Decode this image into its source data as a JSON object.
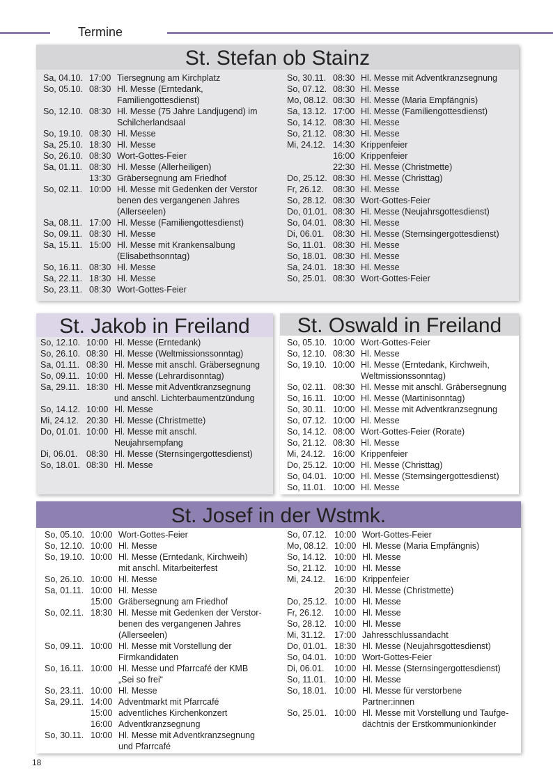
{
  "header": {
    "title": "Termine"
  },
  "page_number": "18",
  "sections": [
    {
      "title": "St. Stefan ob Stainz",
      "columns": [
        [
          {
            "d": "Sa, 04.10.",
            "t": "17:00",
            "e": "Tiersegnung am Kirchplatz"
          },
          {
            "d": "So, 05.10.",
            "t": "08:30",
            "e": "Hl. Messe (Erntedank,"
          },
          {
            "e": "Familiengottesdienst)"
          },
          {
            "d": "So, 12.10.",
            "t": "08:30",
            "e": "Hl. Messe (75 Jahre Landjugend) im"
          },
          {
            "e": "Schilcherlandsaal"
          },
          {
            "d": "So, 19.10.",
            "t": "08:30",
            "e": "Hl. Messe"
          },
          {
            "d": "Sa, 25.10.",
            "t": "18:30",
            "e": "Hl. Messe"
          },
          {
            "d": "So, 26.10.",
            "t": "08:30",
            "e": "Wort-Gottes-Feier"
          },
          {
            "d": "Sa, 01.11.",
            "t": "08:30",
            "e": "Hl. Messe (Allerheiligen)"
          },
          {
            "t": "13:30",
            "e": "Gräbersegnung am Friedhof"
          },
          {
            "d": "So, 02.11.",
            "t": "10:00",
            "e": "Hl. Messe mit Gedenken der Verstor"
          },
          {
            "e": "benen des vergangenen Jahres"
          },
          {
            "e": "(Allerseelen)"
          },
          {
            "d": "Sa, 08.11.",
            "t": "17:00",
            "e": "Hl. Messe (Familiengottesdienst)"
          },
          {
            "d": "So, 09.11.",
            "t": "08:30",
            "e": "Hl. Messe"
          },
          {
            "d": "Sa, 15.11.",
            "t": "15:00",
            "e": "Hl. Messe mit Krankensalbung"
          },
          {
            "e": "(Elisabethsonntag)"
          },
          {
            "d": "So, 16.11.",
            "t": "08:30",
            "e": "Hl. Messe"
          },
          {
            "d": "Sa, 22.11.",
            "t": "18:30",
            "e": "Hl. Messe"
          },
          {
            "d": "So, 23.11.",
            "t": "08:30",
            "e": "Wort-Gottes-Feier"
          }
        ],
        [
          {
            "d": "So, 30.11.",
            "t": "08:30",
            "e": "Hl. Messe mit Adventkranzsegnung"
          },
          {
            "d": "So, 07.12.",
            "t": "08:30",
            "e": "Hl. Messe"
          },
          {
            "d": "Mo, 08.12.",
            "t": "08:30",
            "e": "Hl. Messe (Maria Empfängnis)"
          },
          {
            "d": "Sa, 13.12.",
            "t": "17:00",
            "e": "Hl. Messe (Familiengottesdienst)"
          },
          {
            "d": "So, 14.12.",
            "t": "08:30",
            "e": "Hl. Messe"
          },
          {
            "d": "So, 21.12.",
            "t": "08:30",
            "e": "Hl. Messe"
          },
          {
            "d": "Mi, 24.12.",
            "t": "14:30",
            "e": "Krippenfeier"
          },
          {
            "t": "16:00",
            "e": "Krippenfeier"
          },
          {
            "t": "22:30",
            "e": "Hl. Messe (Christmette)"
          },
          {
            "d": "Do, 25.12.",
            "t": "08:30",
            "e": "Hl. Messe (Christtag)"
          },
          {
            "d": "Fr, 26.12.",
            "t": "08:30",
            "e": "Hl. Messe"
          },
          {
            "d": "So, 28.12.",
            "t": "08:30",
            "e": "Wort-Gottes-Feier"
          },
          {
            "d": "Do, 01.01.",
            "t": "08:30",
            "e": "Hl. Messe (Neujahrsgottesdienst)"
          },
          {
            "d": "So, 04.01.",
            "t": "08:30",
            "e": "Hl. Messe"
          },
          {
            "d": "Di, 06.01.",
            "t": "08:30",
            "e": "Hl. Messe (Sternsingergottesdienst)"
          },
          {
            "d": "So, 11.01.",
            "t": "08:30",
            "e": "Hl. Messe"
          },
          {
            "d": "So, 18.01.",
            "t": "08:30",
            "e": "Hl. Messe"
          },
          {
            "d": "Sa, 24.01.",
            "t": "18:30",
            "e": "Hl. Messe"
          },
          {
            "d": "So, 25.01.",
            "t": "08:30",
            "e": "Wort-Gottes-Feier"
          }
        ]
      ]
    },
    {
      "title": "St. Jakob in Freiland",
      "columns": [
        [
          {
            "d": "So, 12.10.",
            "t": "10:00",
            "e": "Hl. Messe (Erntedank)"
          },
          {
            "d": "So, 26.10.",
            "t": "08:30",
            "e": "Hl. Messe (Weltmissionssonntag)"
          },
          {
            "d": "Sa, 01.11.",
            "t": "08:30",
            "e": "Hl. Messe mit anschl. Gräbersegnung"
          },
          {
            "d": "So, 09.11.",
            "t": "10:00",
            "e": "Hl. Messe (Lehrardisonntag)"
          },
          {
            "d": "Sa, 29.11.",
            "t": "18:30",
            "e": "Hl. Messe mit Adventkranzsegnung"
          },
          {
            "e": "und anschl. Lichterbaumentzündung"
          },
          {
            "d": "So, 14.12.",
            "t": "10:00",
            "e": "Hl. Messe"
          },
          {
            "d": "Mi, 24.12.",
            "t": "20:30",
            "e": "Hl. Messe (Christmette)"
          },
          {
            "d": "Do, 01.01.",
            "t": "10:00",
            "e": "Hl. Messe mit anschl."
          },
          {
            "e": "Neujahrsempfang"
          },
          {
            "d": "Di, 06.01.",
            "t": "08:30",
            "e": "Hl. Messe (Sternsingergottesdienst)"
          },
          {
            "d": "So, 18.01.",
            "t": "08:30",
            "e": "Hl. Messe"
          }
        ]
      ]
    },
    {
      "title": "St. Oswald in Freiland",
      "columns": [
        [
          {
            "d": "So, 05.10.",
            "t": "10:00",
            "e": "Wort-Gottes-Feier"
          },
          {
            "d": "So, 12.10.",
            "t": "08:30",
            "e": "Hl. Messe"
          },
          {
            "d": "So, 19.10.",
            "t": "10:00",
            "e": "Hl. Messe (Erntedank, Kirchweih,"
          },
          {
            "e": "Weltmissionssonntag)"
          },
          {
            "d": "So, 02.11.",
            "t": "08:30",
            "e": "Hl. Messe mit anschl. Gräbersegnung"
          },
          {
            "d": "So, 16.11.",
            "t": "10:00",
            "e": "Hl. Messe (Martinisonntag)"
          },
          {
            "d": "So, 30.11.",
            "t": "10:00",
            "e": "Hl. Messe mit Adventkranzsegnung"
          },
          {
            "d": "So, 07.12.",
            "t": "10:00",
            "e": "Hl. Messe"
          },
          {
            "d": "So, 14.12.",
            "t": "08:00",
            "e": "Wort-Gottes-Feier (Rorate)"
          },
          {
            "d": "So, 21.12.",
            "t": "08:30",
            "e": "Hl. Messe"
          },
          {
            "d": "Mi, 24.12.",
            "t": "16:00",
            "e": "Krippenfeier"
          },
          {
            "d": "Do, 25.12.",
            "t": "10:00",
            "e": "Hl. Messe (Christtag)"
          },
          {
            "d": "So, 04.01.",
            "t": "10:00",
            "e": "Hl. Messe (Sternsingergottesdienst)"
          },
          {
            "d": "So, 11.01.",
            "t": "10:00",
            "e": "Hl. Messe"
          }
        ]
      ]
    },
    {
      "title": "St. Josef in der Wstmk.",
      "columns": [
        [
          {
            "d": "So, 05.10.",
            "t": "10:00",
            "e": "Wort-Gottes-Feier"
          },
          {
            "d": "So, 12.10.",
            "t": "10:00",
            "e": "Hl. Messe"
          },
          {
            "d": "So, 19.10.",
            "t": "10:00",
            "e": "Hl. Messe (Erntedank, Kirchweih)"
          },
          {
            "e": "mit anschl. Mitarbeiterfest"
          },
          {
            "d": "So, 26.10.",
            "t": "10:00",
            "e": "Hl. Messe"
          },
          {
            "d": "Sa, 01.11.",
            "t": "10:00",
            "e": "Hl. Messe"
          },
          {
            "t": "15:00",
            "e": "Gräbersegnung am Friedhof"
          },
          {
            "d": "So, 02.11.",
            "t": "18:30",
            "e": "Hl. Messe mit Gedenken der Verstor-"
          },
          {
            "e": "benen des vergangenen Jahres"
          },
          {
            "e": "(Allerseelen)"
          },
          {
            "d": "So, 09.11.",
            "t": "10:00",
            "e": "Hl. Messe mit Vorstellung der"
          },
          {
            "e": "Firmkandidaten"
          },
          {
            "d": "So, 16.11.",
            "t": "10:00",
            "e": "Hl. Messe und Pfarrcafé der KMB"
          },
          {
            "e": "„Sei so frei“"
          },
          {
            "d": "So, 23.11.",
            "t": "10:00",
            "e": "Hl. Messe"
          },
          {
            "d": "Sa, 29.11.",
            "t": "14:00",
            "e": "Adventmarkt mit Pfarrcafé"
          },
          {
            "t": "15:00",
            "e": "adventliches Kirchenkonzert"
          },
          {
            "t": "16:00",
            "e": "Adventkranzsegnung"
          },
          {
            "d": "So, 30.11.",
            "t": "10:00",
            "e": "Hl. Messe mit Adventkranzsegnung"
          },
          {
            "e": "und Pfarrcafé"
          }
        ],
        [
          {
            "d": "So, 07.12.",
            "t": "10:00",
            "e": "Wort-Gottes-Feier"
          },
          {
            "d": "Mo, 08.12.",
            "t": "10:00",
            "e": "Hl. Messe (Maria Empfängnis)"
          },
          {
            "d": "So, 14.12.",
            "t": "10:00",
            "e": "Hl. Messe"
          },
          {
            "d": "So, 21.12.",
            "t": "10:00",
            "e": "Hl. Messe"
          },
          {
            "d": "Mi, 24.12.",
            "t": "16:00",
            "e": "Krippenfeier"
          },
          {
            "t": "20:30",
            "e": "Hl. Messe (Christmette)"
          },
          {
            "d": "Do, 25.12.",
            "t": "10:00",
            "e": "Hl. Messe"
          },
          {
            "d": "Fr, 26.12.",
            "t": "10:00",
            "e": "Hl. Messe"
          },
          {
            "d": "So, 28.12.",
            "t": "10:00",
            "e": "Hl. Messe"
          },
          {
            "d": "Mi, 31.12.",
            "t": "17:00",
            "e": "Jahresschlussandacht"
          },
          {
            "d": "Do, 01.01.",
            "t": "18:30",
            "e": "Hl. Messe (Neujahrsgottesdienst)"
          },
          {
            "d": "So, 04.01.",
            "t": "10:00",
            "e": "Wort-Gottes-Feier"
          },
          {
            "d": "Di, 06.01.",
            "t": "10:00",
            "e": "Hl. Messe (Sternsingergottesdienst)"
          },
          {
            "d": "So, 11.01.",
            "t": "10:00",
            "e": "Hl. Messe"
          },
          {
            "d": "So, 18.01.",
            "t": "10:00",
            "e": "Hl. Messe für verstorbene"
          },
          {
            "e": "Partner:innen"
          },
          {
            "d": "So, 25.01.",
            "t": "10:00",
            "e": "Hl. Messe mit Vorstellung und Taufge-"
          },
          {
            "e": "dächtnis der Erstkommunionkinder"
          }
        ]
      ]
    }
  ]
}
